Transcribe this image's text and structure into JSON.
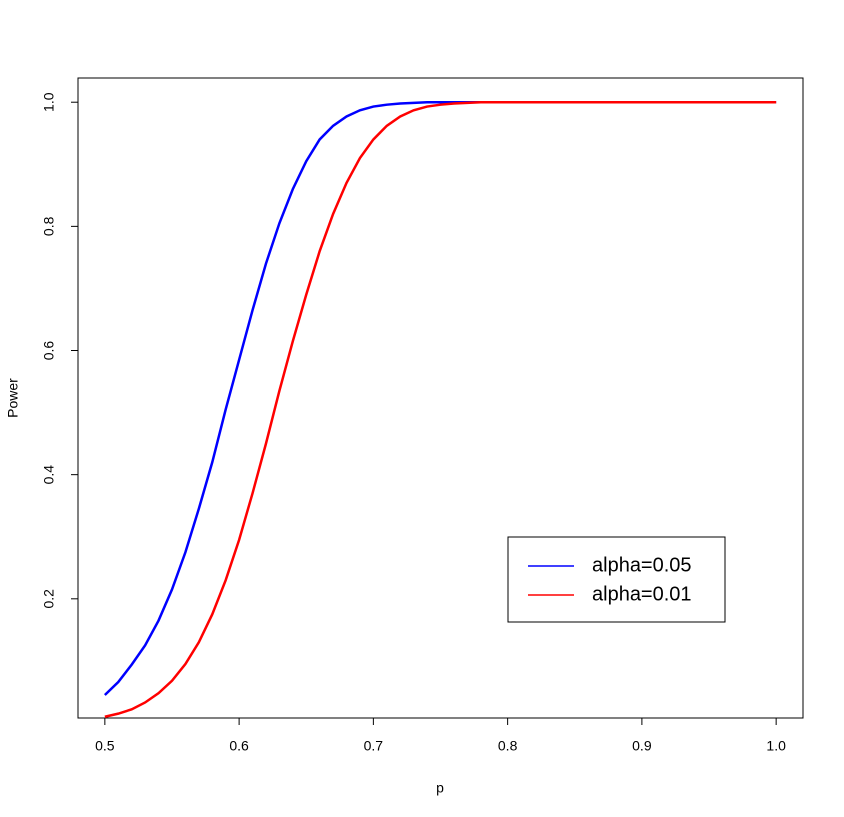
{
  "chart_data": {
    "type": "line",
    "x_label": "p",
    "y_label": "Power",
    "x": [
      0.5,
      0.51,
      0.52,
      0.53,
      0.54,
      0.55,
      0.56,
      0.57,
      0.58,
      0.59,
      0.6,
      0.61,
      0.62,
      0.63,
      0.64,
      0.65,
      0.66,
      0.67,
      0.68,
      0.69,
      0.7,
      0.71,
      0.72,
      0.73,
      0.74,
      0.75,
      0.76,
      0.77,
      0.78,
      0.79,
      0.8,
      0.81,
      0.82,
      0.83,
      0.84,
      0.85,
      0.86,
      0.87,
      0.88,
      0.89,
      0.9,
      0.91,
      0.92,
      0.93,
      0.94,
      0.95,
      0.96,
      0.97,
      0.98,
      0.99,
      1.0
    ],
    "series": [
      {
        "name": "alpha=0.05",
        "color": "#0000ff",
        "values": [
          0.045,
          0.066,
          0.094,
          0.125,
          0.165,
          0.215,
          0.275,
          0.345,
          0.42,
          0.505,
          0.585,
          0.665,
          0.74,
          0.805,
          0.86,
          0.905,
          0.94,
          0.962,
          0.977,
          0.987,
          0.993,
          0.996,
          0.998,
          0.999,
          1,
          1,
          1,
          1,
          1,
          1,
          1,
          1,
          1,
          1,
          1,
          1,
          1,
          1,
          1,
          1,
          1,
          1,
          1,
          1,
          1,
          1,
          1,
          1,
          1,
          1,
          1
        ]
      },
      {
        "name": "alpha=0.01",
        "color": "#ff0000",
        "values": [
          0.01,
          0.015,
          0.022,
          0.033,
          0.048,
          0.068,
          0.095,
          0.13,
          0.175,
          0.23,
          0.295,
          0.37,
          0.45,
          0.535,
          0.615,
          0.69,
          0.76,
          0.82,
          0.87,
          0.91,
          0.94,
          0.962,
          0.977,
          0.987,
          0.993,
          0.996,
          0.998,
          0.999,
          1,
          1,
          1,
          1,
          1,
          1,
          1,
          1,
          1,
          1,
          1,
          1,
          1,
          1,
          1,
          1,
          1,
          1,
          1,
          1,
          1,
          1,
          1
        ]
      }
    ],
    "xlim": [
      0.48,
      1.02
    ],
    "xticks": [
      0.5,
      0.6,
      0.7,
      0.8,
      0.9,
      {
        "value": 1,
        "label": "1.0"
      }
    ],
    "ylim": [
      0.008,
      1.039
    ],
    "yticks": [
      0.2,
      0.4,
      0.6,
      0.8,
      {
        "value": 1,
        "label": "1.0"
      }
    ],
    "legend_position": "bottom-right"
  }
}
